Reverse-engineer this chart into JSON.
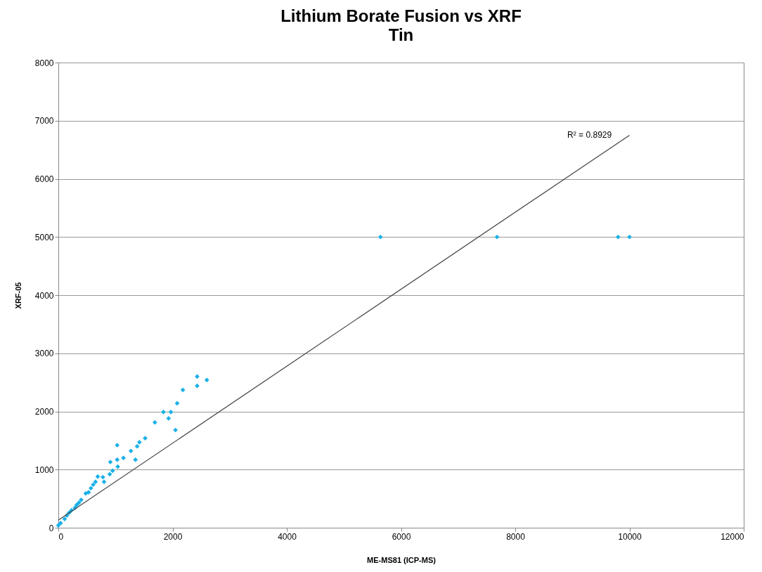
{
  "chart_data": {
    "type": "scatter",
    "title": "Lithium Borate Fusion vs XRF",
    "subtitle": "Tin",
    "xlabel": "ME-MS81  (ICP-MS)",
    "ylabel": "XRF-05",
    "xlim": [
      0,
      12000
    ],
    "xticks": [
      0,
      2000,
      4000,
      6000,
      8000,
      10000,
      12000
    ],
    "ylim": [
      0,
      8000
    ],
    "yticks": [
      0,
      1000,
      2000,
      3000,
      4000,
      5000,
      6000,
      7000,
      8000
    ],
    "grid": "y",
    "legend": false,
    "marker": "diamond",
    "series": [
      {
        "color": "#1ab0e8",
        "x": [
          2430,
          2600,
          2430,
          2180,
          2080,
          1840,
          1970,
          1930,
          1690,
          2050,
          1520,
          1420,
          1380,
          1030,
          1270,
          1350,
          1140,
          1030,
          910,
          1040,
          950,
          690,
          800,
          610,
          530,
          400,
          290,
          190,
          110,
          0,
          780,
          900,
          650,
          480,
          360,
          230,
          150,
          40,
          570,
          320,
          5640,
          7680,
          9800,
          10000
        ],
        "values": [
          2600,
          2540,
          2440,
          2370,
          2140,
          1990,
          1990,
          1880,
          1810,
          1680,
          1540,
          1470,
          1400,
          1420,
          1320,
          1170,
          1200,
          1170,
          1130,
          1050,
          980,
          880,
          790,
          740,
          610,
          480,
          340,
          260,
          150,
          40,
          870,
          920,
          790,
          590,
          430,
          300,
          210,
          80,
          680,
          390,
          5000,
          5000,
          5000,
          5000
        ]
      },
      {
        "type": "line",
        "color": "#404040",
        "marker": "none",
        "x": [
          0,
          10000
        ],
        "values": [
          130,
          6750
        ]
      }
    ],
    "annotations": [
      "R² = 0.8929"
    ]
  }
}
